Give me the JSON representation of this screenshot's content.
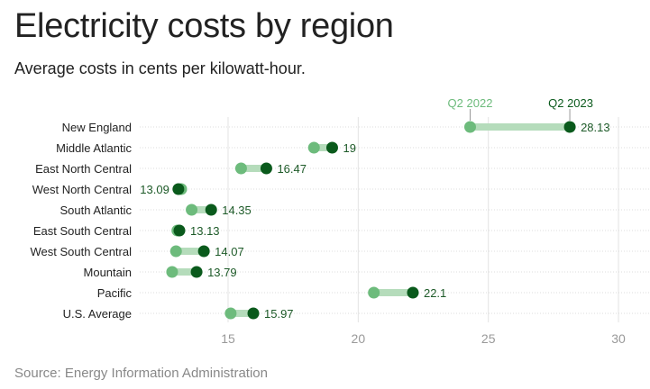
{
  "title": "Electricity costs by region",
  "subtitle": "Average costs in cents per kilowatt-hour.",
  "source": "Source: Energy Information Administration",
  "colors": {
    "q2_2022": "#6dbb7c",
    "q2_2023": "#0a5a1c",
    "connector": "#b5dcbb",
    "label": "#1d5a28"
  },
  "chart_data": {
    "type": "dumbbell",
    "categories": [
      "New England",
      "Middle Atlantic",
      "East North Central",
      "West North Central",
      "South Atlantic",
      "East South Central",
      "West South Central",
      "Mountain",
      "Pacific",
      "U.S. Average"
    ],
    "series": [
      {
        "name": "Q2 2022",
        "values": [
          24.3,
          18.3,
          15.5,
          13.2,
          13.6,
          13.05,
          13.0,
          12.85,
          20.6,
          15.1
        ]
      },
      {
        "name": "Q2 2023",
        "values": [
          28.13,
          19,
          16.47,
          13.09,
          14.35,
          13.13,
          14.07,
          13.79,
          22.1,
          15.97
        ]
      }
    ],
    "data_labels": [
      "28.13",
      "19",
      "16.47",
      "13.09",
      "14.35",
      "13.13",
      "14.07",
      "13.79",
      "22.1",
      "15.97"
    ],
    "x_ticks": [
      "15",
      "20",
      "25",
      "30"
    ],
    "xlim": [
      11.6,
      31.2
    ],
    "grid": true,
    "legend": "top, direct labels"
  }
}
